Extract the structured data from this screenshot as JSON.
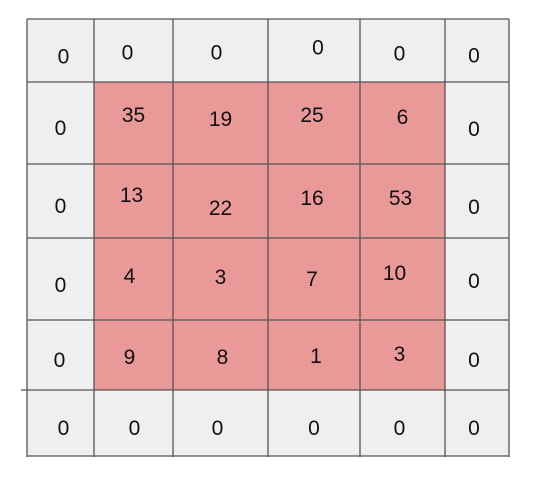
{
  "matrix": {
    "rows": [
      [
        "0",
        "0",
        "0",
        "0",
        "0",
        "0"
      ],
      [
        "0",
        "35",
        "19",
        "25",
        "6",
        "0"
      ],
      [
        "0",
        "13",
        "22",
        "16",
        "53",
        "0"
      ],
      [
        "0",
        "4",
        "3",
        "7",
        "10",
        "0"
      ],
      [
        "0",
        "9",
        "8",
        "1",
        "3",
        "0"
      ],
      [
        "0",
        "0",
        "0",
        "0",
        "0",
        "0"
      ]
    ],
    "padding_fill": "#efefef",
    "inner_fill": "#ea9999",
    "border_color": "#555555",
    "text_color": "#111111"
  }
}
